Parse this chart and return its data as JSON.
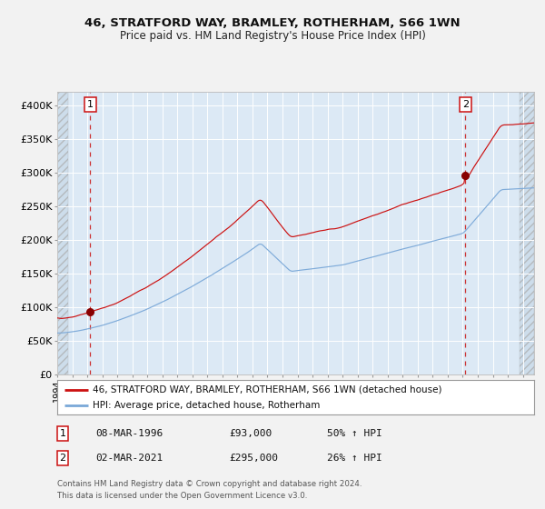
{
  "title1": "46, STRATFORD WAY, BRAMLEY, ROTHERHAM, S66 1WN",
  "title2": "Price paid vs. HM Land Registry's House Price Index (HPI)",
  "legend_property": "46, STRATFORD WAY, BRAMLEY, ROTHERHAM, S66 1WN (detached house)",
  "legend_hpi": "HPI: Average price, detached house, Rotherham",
  "annotation1_label": "1",
  "annotation1_date": "08-MAR-1996",
  "annotation1_price": "£93,000",
  "annotation1_hpi": "50% ↑ HPI",
  "annotation2_label": "2",
  "annotation2_date": "02-MAR-2021",
  "annotation2_price": "£295,000",
  "annotation2_hpi": "26% ↑ HPI",
  "footer": "Contains HM Land Registry data © Crown copyright and database right 2024.\nThis data is licensed under the Open Government Licence v3.0.",
  "property_color": "#cc1111",
  "hpi_color": "#7aa8d8",
  "dashed_line_color": "#cc3333",
  "marker_color": "#880000",
  "plot_bg_color": "#dce9f5",
  "outer_bg_color": "#f0f0f0",
  "grid_color": "#ffffff",
  "ylim": [
    0,
    420000
  ],
  "yticks": [
    0,
    50000,
    100000,
    150000,
    200000,
    250000,
    300000,
    350000,
    400000
  ],
  "ytick_labels": [
    "£0",
    "£50K",
    "£100K",
    "£150K",
    "£200K",
    "£250K",
    "£300K",
    "£350K",
    "£400K"
  ],
  "sale1_x": 1996.19,
  "sale1_y": 93000,
  "sale2_x": 2021.17,
  "sale2_y": 295000,
  "xmin": 1994.0,
  "xmax": 2025.75
}
